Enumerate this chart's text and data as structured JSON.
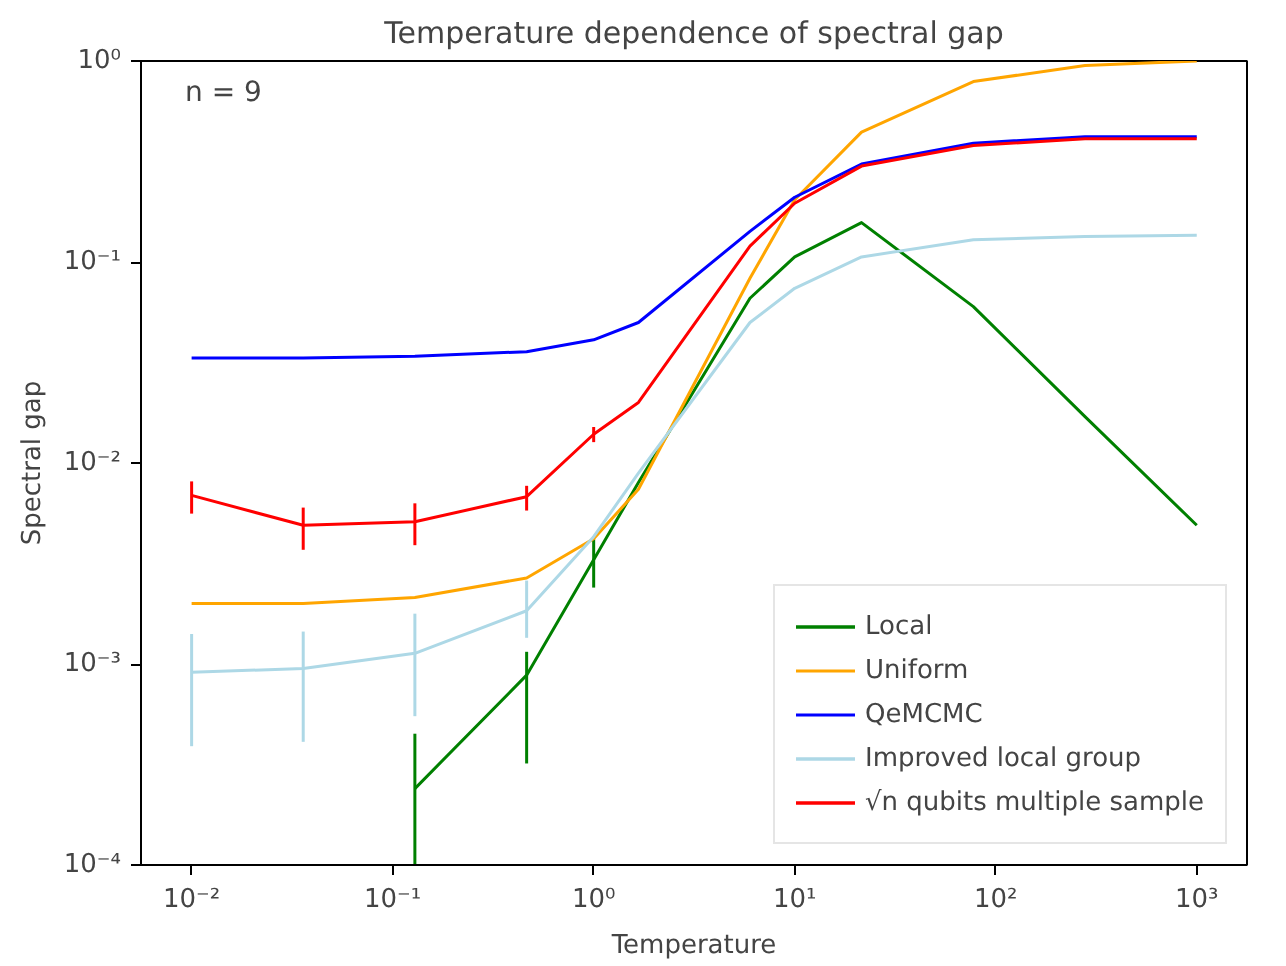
{
  "chart_data": {
    "type": "line",
    "title": "Temperature dependence of spectral gap",
    "xlabel": "Temperature",
    "ylabel": "Spectral gap",
    "annotations": [
      "n = 9"
    ],
    "x": [
      0.01,
      0.0359,
      0.129,
      0.464,
      1,
      1.67,
      5.99,
      10,
      21.5,
      77.4,
      278,
      1000
    ],
    "log": "xy",
    "xlim": [
      0.0056,
      1778
    ],
    "ylim": [
      0.0001,
      1
    ],
    "xticks": [
      {
        "value": 0.01,
        "label": "10⁻²"
      },
      {
        "value": 0.1,
        "label": "10⁻¹"
      },
      {
        "value": 1,
        "label": "10⁰"
      },
      {
        "value": 10,
        "label": "10¹"
      },
      {
        "value": 100,
        "label": "10²"
      },
      {
        "value": 1000,
        "label": "10³"
      }
    ],
    "yticks": [
      {
        "value": 0.0001,
        "label": "10⁻⁴"
      },
      {
        "value": 0.001,
        "label": "10⁻³"
      },
      {
        "value": 0.01,
        "label": "10⁻²"
      },
      {
        "value": 0.1,
        "label": "10⁻¹"
      },
      {
        "value": 1,
        "label": "10⁰"
      }
    ],
    "grid": false,
    "legend": "bottom right",
    "line_style": "solid",
    "marker": "none",
    "series": [
      {
        "name": "Local",
        "color": "#008000",
        "values": [
          null,
          null,
          0.00024,
          0.00088,
          0.0033,
          0.008,
          0.066,
          0.106,
          0.157,
          0.06,
          0.017,
          0.0049
        ],
        "errors": [
          null,
          null,
          [
            0.0001,
            0.00045
          ],
          [
            0.00032,
            0.00115
          ],
          [
            0.0024,
            0.0043
          ],
          null,
          null,
          null,
          null,
          null,
          null,
          null
        ]
      },
      {
        "name": "Uniform",
        "color": "#ffa500",
        "values": [
          0.002,
          0.002,
          0.00214,
          0.00268,
          0.0042,
          0.0074,
          0.083,
          0.204,
          0.443,
          0.79,
          0.95,
          1.0
        ]
      },
      {
        "name": "QeMCMC",
        "color": "#0000ff",
        "values": [
          0.0333,
          0.0333,
          0.034,
          0.0358,
          0.041,
          0.05,
          0.142,
          0.21,
          0.307,
          0.39,
          0.42,
          0.42
        ]
      },
      {
        "name": "Improved local group",
        "color": "#add8e6",
        "values": [
          0.00091,
          0.00095,
          0.00113,
          0.00184,
          0.0043,
          0.0089,
          0.05,
          0.074,
          0.106,
          0.129,
          0.134,
          0.136
        ],
        "errors": [
          [
            0.00039,
            0.00141
          ],
          [
            0.00041,
            0.00145
          ],
          [
            0.00055,
            0.00178
          ],
          [
            0.00135,
            0.0026
          ],
          null,
          null,
          null,
          null,
          null,
          null,
          null,
          null
        ]
      },
      {
        "name": "√n qubits multiple sample",
        "color": "#ff0000",
        "values": [
          0.0069,
          0.0049,
          0.0051,
          0.0068,
          0.0139,
          0.02,
          0.12,
          0.196,
          0.3,
          0.38,
          0.41,
          0.41
        ],
        "errors": [
          [
            0.0056,
            0.0081
          ],
          [
            0.0037,
            0.006
          ],
          [
            0.0039,
            0.0063
          ],
          [
            0.0058,
            0.0077
          ],
          [
            0.0127,
            0.0151
          ],
          null,
          null,
          null,
          null,
          null,
          null,
          null
        ]
      }
    ]
  }
}
